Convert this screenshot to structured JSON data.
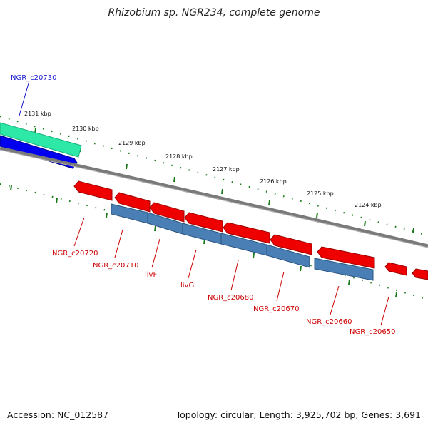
{
  "title": "Rhizobium sp. NGR234, complete genome",
  "footer": {
    "accession": "Accession: NC_012587",
    "summary": "Topology: circular; Length: 3,925,702 bp; Genes: 3,691"
  },
  "colors": {
    "forward_gene": "#0000ee",
    "forward_gene_alt": "#2ee8a8",
    "reverse_gene": "#ee0000",
    "reverse_cds": "#4a7fb5",
    "backbone": "#7a7a7a",
    "ticks": "#1a7a1a",
    "forward_label": "#1a1acc",
    "reverse_label": "#cc0000"
  },
  "kbp_ticks": [
    "2131 kbp",
    "2130 kbp",
    "2129 kbp",
    "2128 kbp",
    "2127 kbp",
    "2126 kbp",
    "2125 kbp",
    "2124 kbp"
  ],
  "forward_genes": [
    {
      "label": "NGR_c20730"
    }
  ],
  "reverse_genes": [
    {
      "label": "NGR_c20720"
    },
    {
      "label": "NGR_c20710"
    },
    {
      "label": "livF"
    },
    {
      "label": "livG"
    },
    {
      "label": "NGR_c20680"
    },
    {
      "label": "NGR_c20670"
    },
    {
      "label": "NGR_c20660"
    },
    {
      "label": "NGR_c20650"
    }
  ]
}
